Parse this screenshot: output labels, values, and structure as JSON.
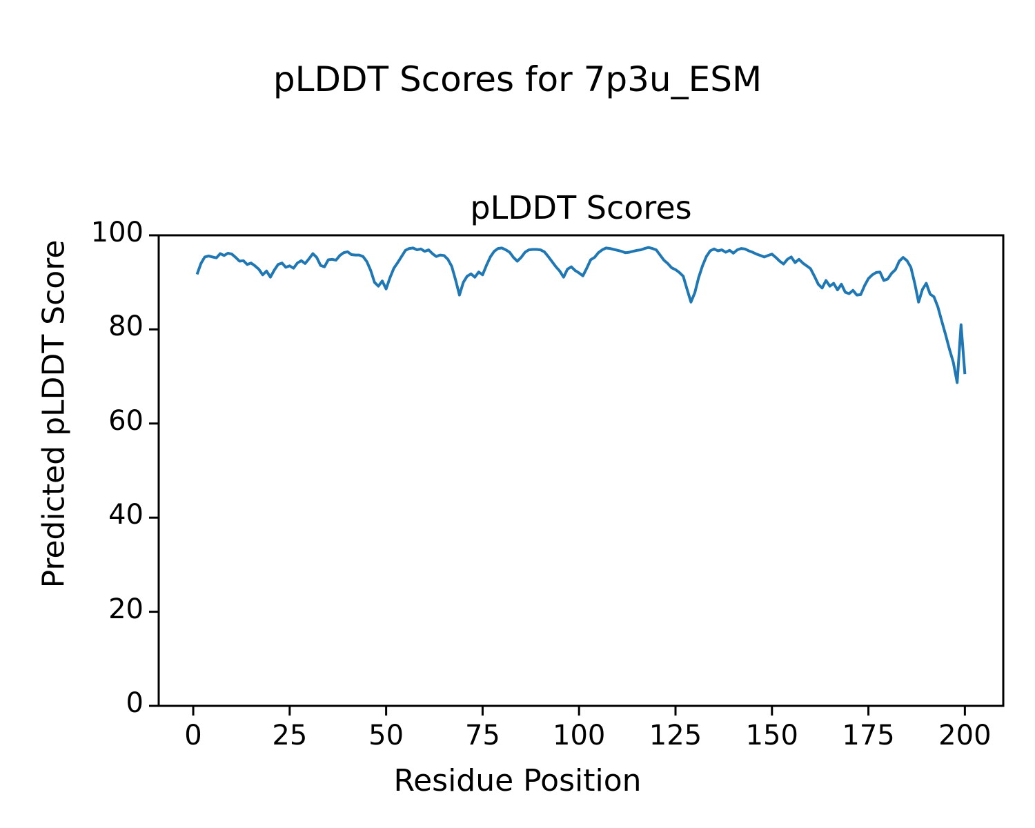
{
  "figure": {
    "suptitle": "pLDDT Scores for 7p3u_ESM",
    "background_color": "#ffffff",
    "text_color": "#000000"
  },
  "chart_data": {
    "type": "line",
    "title": "pLDDT Scores",
    "xlabel": "Residue Position",
    "ylabel": "Predicted pLDDT Score",
    "legend_position": "none",
    "grid": false,
    "line_color": "#1f77b4",
    "line_width": 4,
    "spine_color": "#000000",
    "x_start": 1,
    "x_ticks": [
      0,
      25,
      50,
      75,
      100,
      125,
      150,
      175,
      200
    ],
    "y_ticks": [
      0,
      20,
      40,
      60,
      80,
      100
    ],
    "xlim": [
      -8.95,
      209.95
    ],
    "ylim": [
      0,
      100
    ],
    "series": [
      {
        "name": "pLDDT",
        "values": [
          91.7,
          94.0,
          95.4,
          95.6,
          95.4,
          95.2,
          96.1,
          95.7,
          96.2,
          96.0,
          95.3,
          94.5,
          94.6,
          93.8,
          94.1,
          93.5,
          92.8,
          91.6,
          92.4,
          91.1,
          92.6,
          93.8,
          94.1,
          93.2,
          93.5,
          93.0,
          94.1,
          94.6,
          94.0,
          95.0,
          96.1,
          95.3,
          93.6,
          93.3,
          94.8,
          94.9,
          94.7,
          95.7,
          96.3,
          96.5,
          95.9,
          95.8,
          95.8,
          95.5,
          94.4,
          92.5,
          90.0,
          89.2,
          90.3,
          88.6,
          91.0,
          93.0,
          94.2,
          95.5,
          96.8,
          97.2,
          97.3,
          96.9,
          97.1,
          96.6,
          96.9,
          96.1,
          95.5,
          95.8,
          95.7,
          94.9,
          93.4,
          90.5,
          87.3,
          90.0,
          91.3,
          91.8,
          91.1,
          92.2,
          91.6,
          93.6,
          95.4,
          96.6,
          97.2,
          97.3,
          96.9,
          96.4,
          95.3,
          94.5,
          95.3,
          96.4,
          96.9,
          97.0,
          97.0,
          96.9,
          96.5,
          95.5,
          94.4,
          93.3,
          92.4,
          91.1,
          92.8,
          93.3,
          92.5,
          92.0,
          91.4,
          93.0,
          94.8,
          95.3,
          96.3,
          96.9,
          97.3,
          97.2,
          97.0,
          96.8,
          96.6,
          96.3,
          96.4,
          96.6,
          96.8,
          96.9,
          97.2,
          97.4,
          97.2,
          96.9,
          95.8,
          94.7,
          94.0,
          93.1,
          92.7,
          92.1,
          91.3,
          88.5,
          85.8,
          87.8,
          91.0,
          93.5,
          95.5,
          96.7,
          97.1,
          96.7,
          96.9,
          96.4,
          96.8,
          96.2,
          96.9,
          97.2,
          97.1,
          96.7,
          96.4,
          96.0,
          95.7,
          95.4,
          95.7,
          96.0,
          95.3,
          94.5,
          93.9,
          94.9,
          95.4,
          94.2,
          94.9,
          94.1,
          93.5,
          92.9,
          91.3,
          89.6,
          88.8,
          90.4,
          89.2,
          89.8,
          88.4,
          89.6,
          87.9,
          87.6,
          88.3,
          87.3,
          87.4,
          89.3,
          90.8,
          91.6,
          92.1,
          92.2,
          90.4,
          90.7,
          91.9,
          92.7,
          94.5,
          95.3,
          94.6,
          93.2,
          89.8,
          85.8,
          88.5,
          89.8,
          87.5,
          86.9,
          84.8,
          81.8,
          78.9,
          75.8,
          73.0,
          68.7,
          81.0,
          70.5
        ]
      }
    ]
  }
}
